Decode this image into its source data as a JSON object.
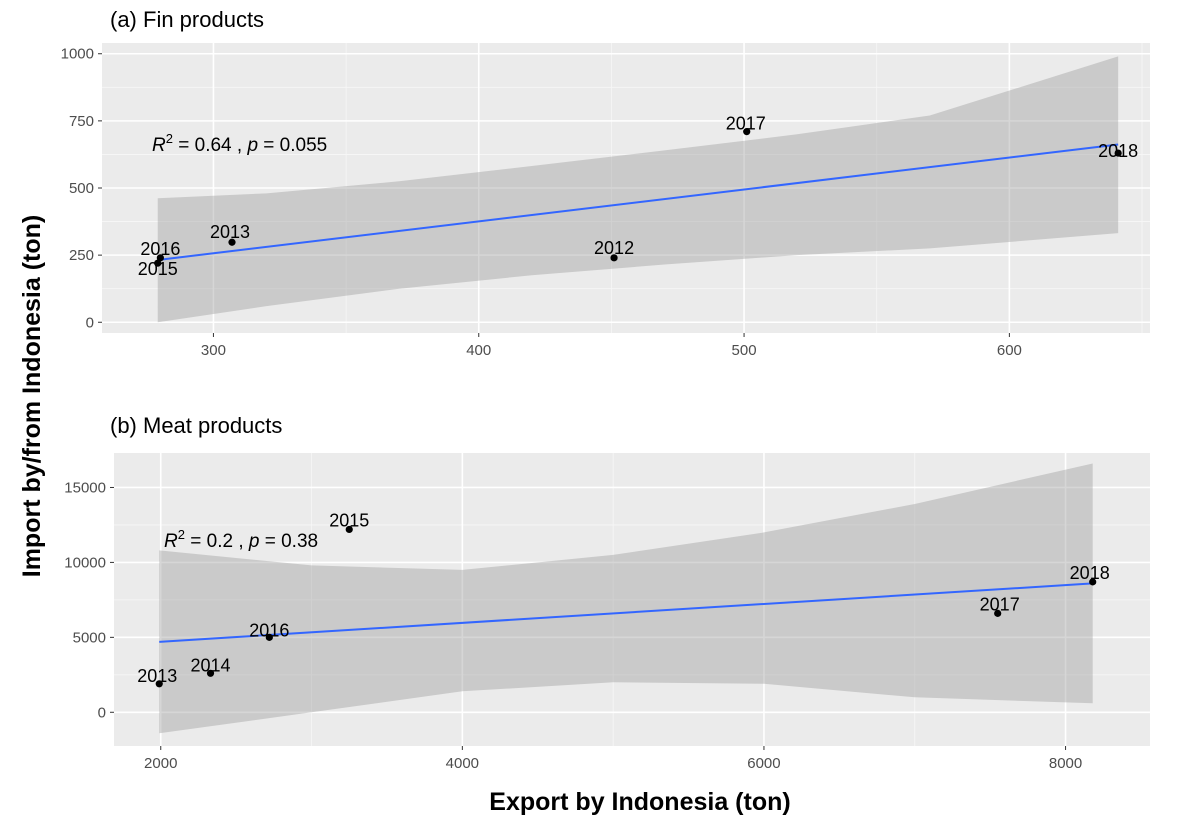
{
  "figure": {
    "ylabel": "Import by/from Indonesia (ton)",
    "xlabel": "Export by Indonesia (ton)"
  },
  "chart_data": [
    {
      "type": "scatter",
      "title": "(a) Fin products",
      "xlim": [
        258,
        653
      ],
      "ylim": [
        -40,
        1040
      ],
      "x_ticks": [
        300,
        400,
        500,
        600
      ],
      "y_ticks": [
        0,
        250,
        500,
        750,
        1000
      ],
      "grid": true,
      "points": [
        {
          "label": "2012",
          "x": 451,
          "y": 240
        },
        {
          "label": "2013",
          "x": 307,
          "y": 298
        },
        {
          "label": "2015",
          "x": 279,
          "y": 220
        },
        {
          "label": "2016",
          "x": 280,
          "y": 240
        },
        {
          "label": "2017",
          "x": 501,
          "y": 710
        },
        {
          "label": "2018",
          "x": 641,
          "y": 630
        }
      ],
      "fit": {
        "x": [
          279,
          641
        ],
        "y": [
          232,
          662
        ],
        "color": "#3366ff",
        "ci_upper": [
          [
            279,
            462
          ],
          [
            320,
            480
          ],
          [
            370,
            525
          ],
          [
            420,
            582
          ],
          [
            470,
            640
          ],
          [
            520,
            700
          ],
          [
            570,
            770
          ],
          [
            641,
            990
          ]
        ],
        "ci_lower": [
          [
            279,
            0
          ],
          [
            320,
            60
          ],
          [
            370,
            125
          ],
          [
            420,
            175
          ],
          [
            470,
            215
          ],
          [
            520,
            250
          ],
          [
            570,
            275
          ],
          [
            641,
            332
          ]
        ]
      },
      "annotation": {
        "r2_prefix": "R",
        "r2_exp": "2",
        "r2_value": " = 0.64 , ",
        "p_prefix": "p",
        "p_value": " = 0.055"
      }
    },
    {
      "type": "scatter",
      "title": "(b) Meat products",
      "xlim": [
        1690,
        8560
      ],
      "ylim": [
        -2250,
        17300
      ],
      "x_ticks": [
        2000,
        4000,
        6000,
        8000
      ],
      "y_ticks": [
        0,
        5000,
        10000,
        15000
      ],
      "grid": true,
      "points": [
        {
          "label": "2013",
          "x": 1990,
          "y": 1900
        },
        {
          "label": "2014",
          "x": 2330,
          "y": 2600
        },
        {
          "label": "2015",
          "x": 3250,
          "y": 12200
        },
        {
          "label": "2016",
          "x": 2720,
          "y": 5000
        },
        {
          "label": "2017",
          "x": 7550,
          "y": 6600
        },
        {
          "label": "2018",
          "x": 8180,
          "y": 8700
        }
      ],
      "fit": {
        "x": [
          1990,
          8180
        ],
        "y": [
          4700,
          8600
        ],
        "color": "#3366ff",
        "ci_upper": [
          [
            1990,
            10800
          ],
          [
            3000,
            9800
          ],
          [
            4000,
            9500
          ],
          [
            5000,
            10500
          ],
          [
            6000,
            12000
          ],
          [
            7000,
            13900
          ],
          [
            8180,
            16600
          ]
        ],
        "ci_lower": [
          [
            1990,
            -1400
          ],
          [
            3000,
            0
          ],
          [
            4000,
            1400
          ],
          [
            5000,
            2000
          ],
          [
            6000,
            1900
          ],
          [
            7000,
            1000
          ],
          [
            8180,
            600
          ]
        ]
      },
      "annotation": {
        "r2_prefix": "R",
        "r2_exp": "2",
        "r2_value": " = 0.2 , ",
        "p_prefix": "p",
        "p_value": " = 0.38"
      }
    }
  ]
}
